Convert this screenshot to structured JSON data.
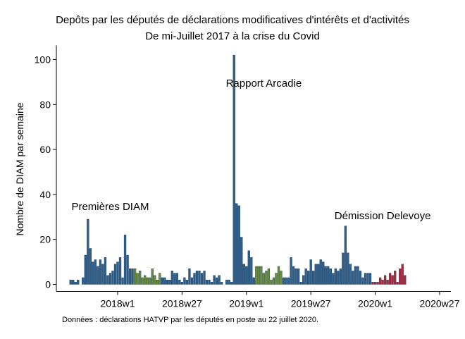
{
  "chart_data": {
    "type": "bar",
    "title": "Depôts par les députés de déclarations modificatives d'intérêts et d'activités",
    "subtitle": "De mi-Juillet 2017 à la crise du Covid",
    "xlabel": "",
    "ylabel": "Nombre de DIAM par semaine",
    "note": "Données : déclarations HATVP par les députés en poste au 22 juillet 2020.",
    "ylim": [
      0,
      105
    ],
    "yticks": [
      0,
      20,
      40,
      60,
      80,
      100
    ],
    "xticks": [
      {
        "week": 0,
        "label": "2018w1"
      },
      {
        "week": 26,
        "label": "2018w27"
      },
      {
        "week": 52,
        "label": "2019w1"
      },
      {
        "week": 78,
        "label": "2019w27"
      },
      {
        "week": 104,
        "label": "2020w1"
      },
      {
        "week": 130,
        "label": "2020w27"
      }
    ],
    "grid": false,
    "legend": "none",
    "colors": {
      "blue": "#2e5e8a",
      "green": "#6b8e3a",
      "red": "#b0283a"
    },
    "annotations": [
      {
        "text": "Premières DIAM",
        "week": -3,
        "y": 33
      },
      {
        "text": "Rapport Arcadie",
        "week": 59,
        "y": 88
      },
      {
        "text": "Démission Delevoye",
        "week": 107,
        "y": 29
      }
    ],
    "bars": [
      {
        "week": -19,
        "value": 2,
        "color": "blue"
      },
      {
        "week": -18,
        "value": 2,
        "color": "blue"
      },
      {
        "week": -17,
        "value": 1,
        "color": "blue"
      },
      {
        "week": -16,
        "value": 2,
        "color": "blue"
      },
      {
        "week": -15,
        "value": 0,
        "color": "blue"
      },
      {
        "week": -14,
        "value": 3,
        "color": "blue"
      },
      {
        "week": -13,
        "value": 13,
        "color": "blue"
      },
      {
        "week": -12,
        "value": 29,
        "color": "blue"
      },
      {
        "week": -11,
        "value": 16,
        "color": "blue"
      },
      {
        "week": -10,
        "value": 10,
        "color": "blue"
      },
      {
        "week": -9,
        "value": 11,
        "color": "blue"
      },
      {
        "week": -8,
        "value": 8,
        "color": "blue"
      },
      {
        "week": -7,
        "value": 11,
        "color": "blue"
      },
      {
        "week": -6,
        "value": 9,
        "color": "blue"
      },
      {
        "week": -5,
        "value": 12,
        "color": "blue"
      },
      {
        "week": -4,
        "value": 4,
        "color": "blue"
      },
      {
        "week": -3,
        "value": 5,
        "color": "blue"
      },
      {
        "week": -2,
        "value": 6,
        "color": "blue"
      },
      {
        "week": -1,
        "value": 9,
        "color": "blue"
      },
      {
        "week": 0,
        "value": 10,
        "color": "blue"
      },
      {
        "week": 1,
        "value": 12,
        "color": "blue"
      },
      {
        "week": 2,
        "value": 3,
        "color": "blue"
      },
      {
        "week": 3,
        "value": 22,
        "color": "blue"
      },
      {
        "week": 4,
        "value": 13,
        "color": "blue"
      },
      {
        "week": 5,
        "value": 7,
        "color": "blue"
      },
      {
        "week": 6,
        "value": 7,
        "color": "blue"
      },
      {
        "week": 7,
        "value": 7,
        "color": "green"
      },
      {
        "week": 8,
        "value": 5,
        "color": "green"
      },
      {
        "week": 9,
        "value": 6,
        "color": "green"
      },
      {
        "week": 10,
        "value": 3,
        "color": "green"
      },
      {
        "week": 11,
        "value": 4,
        "color": "green"
      },
      {
        "week": 12,
        "value": 3,
        "color": "green"
      },
      {
        "week": 13,
        "value": 3,
        "color": "green"
      },
      {
        "week": 14,
        "value": 7,
        "color": "green"
      },
      {
        "week": 15,
        "value": 4,
        "color": "green"
      },
      {
        "week": 16,
        "value": 2,
        "color": "green"
      },
      {
        "week": 17,
        "value": 5,
        "color": "green"
      },
      {
        "week": 18,
        "value": 3,
        "color": "blue"
      },
      {
        "week": 19,
        "value": 3,
        "color": "blue"
      },
      {
        "week": 20,
        "value": 2,
        "color": "blue"
      },
      {
        "week": 21,
        "value": 2,
        "color": "blue"
      },
      {
        "week": 22,
        "value": 6,
        "color": "blue"
      },
      {
        "week": 23,
        "value": 5,
        "color": "blue"
      },
      {
        "week": 24,
        "value": 5,
        "color": "blue"
      },
      {
        "week": 25,
        "value": 2,
        "color": "blue"
      },
      {
        "week": 26,
        "value": 1,
        "color": "blue"
      },
      {
        "week": 27,
        "value": 3,
        "color": "blue"
      },
      {
        "week": 28,
        "value": 2,
        "color": "blue"
      },
      {
        "week": 29,
        "value": 7,
        "color": "blue"
      },
      {
        "week": 30,
        "value": 3,
        "color": "blue"
      },
      {
        "week": 31,
        "value": 5,
        "color": "blue"
      },
      {
        "week": 32,
        "value": 6,
        "color": "blue"
      },
      {
        "week": 33,
        "value": 6,
        "color": "blue"
      },
      {
        "week": 34,
        "value": 5,
        "color": "blue"
      },
      {
        "week": 35,
        "value": 6,
        "color": "blue"
      },
      {
        "week": 36,
        "value": 2,
        "color": "blue"
      },
      {
        "week": 37,
        "value": 2,
        "color": "blue"
      },
      {
        "week": 38,
        "value": 1,
        "color": "blue"
      },
      {
        "week": 39,
        "value": 4,
        "color": "blue"
      },
      {
        "week": 40,
        "value": 3,
        "color": "blue"
      },
      {
        "week": 41,
        "value": 4,
        "color": "blue"
      },
      {
        "week": 42,
        "value": 1,
        "color": "blue"
      },
      {
        "week": 43,
        "value": 0,
        "color": "blue"
      },
      {
        "week": 44,
        "value": 2,
        "color": "blue"
      },
      {
        "week": 45,
        "value": 2,
        "color": "blue"
      },
      {
        "week": 46,
        "value": 1,
        "color": "blue"
      },
      {
        "week": 47,
        "value": 102,
        "color": "blue"
      },
      {
        "week": 48,
        "value": 36,
        "color": "blue"
      },
      {
        "week": 49,
        "value": 35,
        "color": "blue"
      },
      {
        "week": 50,
        "value": 21,
        "color": "blue"
      },
      {
        "week": 51,
        "value": 9,
        "color": "blue"
      },
      {
        "week": 52,
        "value": 8,
        "color": "blue"
      },
      {
        "week": 53,
        "value": 15,
        "color": "blue"
      },
      {
        "week": 54,
        "value": 12,
        "color": "blue"
      },
      {
        "week": 55,
        "value": 3,
        "color": "blue"
      },
      {
        "week": 56,
        "value": 8,
        "color": "green"
      },
      {
        "week": 57,
        "value": 8,
        "color": "green"
      },
      {
        "week": 58,
        "value": 8,
        "color": "green"
      },
      {
        "week": 59,
        "value": 5,
        "color": "green"
      },
      {
        "week": 60,
        "value": 6,
        "color": "green"
      },
      {
        "week": 61,
        "value": 7,
        "color": "green"
      },
      {
        "week": 62,
        "value": 2,
        "color": "green"
      },
      {
        "week": 63,
        "value": 3,
        "color": "green"
      },
      {
        "week": 64,
        "value": 5,
        "color": "green"
      },
      {
        "week": 65,
        "value": 8,
        "color": "green"
      },
      {
        "week": 66,
        "value": 6,
        "color": "green"
      },
      {
        "week": 67,
        "value": 3,
        "color": "blue"
      },
      {
        "week": 68,
        "value": 3,
        "color": "blue"
      },
      {
        "week": 69,
        "value": 3,
        "color": "blue"
      },
      {
        "week": 70,
        "value": 12,
        "color": "blue"
      },
      {
        "week": 71,
        "value": 8,
        "color": "blue"
      },
      {
        "week": 72,
        "value": 7,
        "color": "blue"
      },
      {
        "week": 73,
        "value": 7,
        "color": "blue"
      },
      {
        "week": 74,
        "value": 1,
        "color": "blue"
      },
      {
        "week": 75,
        "value": 4,
        "color": "blue"
      },
      {
        "week": 76,
        "value": 7,
        "color": "blue"
      },
      {
        "week": 77,
        "value": 6,
        "color": "blue"
      },
      {
        "week": 78,
        "value": 11,
        "color": "blue"
      },
      {
        "week": 79,
        "value": 6,
        "color": "blue"
      },
      {
        "week": 80,
        "value": 9,
        "color": "blue"
      },
      {
        "week": 81,
        "value": 9,
        "color": "blue"
      },
      {
        "week": 82,
        "value": 11,
        "color": "blue"
      },
      {
        "week": 83,
        "value": 10,
        "color": "blue"
      },
      {
        "week": 84,
        "value": 8,
        "color": "blue"
      },
      {
        "week": 85,
        "value": 8,
        "color": "blue"
      },
      {
        "week": 86,
        "value": 7,
        "color": "blue"
      },
      {
        "week": 87,
        "value": 5,
        "color": "blue"
      },
      {
        "week": 88,
        "value": 7,
        "color": "blue"
      },
      {
        "week": 89,
        "value": 6,
        "color": "blue"
      },
      {
        "week": 90,
        "value": 7,
        "color": "blue"
      },
      {
        "week": 91,
        "value": 14,
        "color": "blue"
      },
      {
        "week": 92,
        "value": 26,
        "color": "blue"
      },
      {
        "week": 93,
        "value": 14,
        "color": "blue"
      },
      {
        "week": 94,
        "value": 9,
        "color": "blue"
      },
      {
        "week": 95,
        "value": 6,
        "color": "blue"
      },
      {
        "week": 96,
        "value": 8,
        "color": "blue"
      },
      {
        "week": 97,
        "value": 8,
        "color": "blue"
      },
      {
        "week": 98,
        "value": 6,
        "color": "blue"
      },
      {
        "week": 99,
        "value": 3,
        "color": "blue"
      },
      {
        "week": 100,
        "value": 5,
        "color": "blue"
      },
      {
        "week": 101,
        "value": 5,
        "color": "blue"
      },
      {
        "week": 102,
        "value": 5,
        "color": "blue"
      },
      {
        "week": 103,
        "value": 1,
        "color": "red"
      },
      {
        "week": 104,
        "value": 1,
        "color": "red"
      },
      {
        "week": 105,
        "value": 1,
        "color": "red"
      },
      {
        "week": 106,
        "value": 3,
        "color": "red"
      },
      {
        "week": 107,
        "value": 2,
        "color": "red"
      },
      {
        "week": 108,
        "value": 4,
        "color": "red"
      },
      {
        "week": 109,
        "value": 2,
        "color": "red"
      },
      {
        "week": 110,
        "value": 5,
        "color": "red"
      },
      {
        "week": 111,
        "value": 4,
        "color": "red"
      },
      {
        "week": 112,
        "value": 6,
        "color": "red"
      },
      {
        "week": 113,
        "value": 1,
        "color": "red"
      },
      {
        "week": 114,
        "value": 7,
        "color": "red"
      },
      {
        "week": 115,
        "value": 9,
        "color": "red"
      },
      {
        "week": 116,
        "value": 4,
        "color": "red"
      }
    ]
  }
}
